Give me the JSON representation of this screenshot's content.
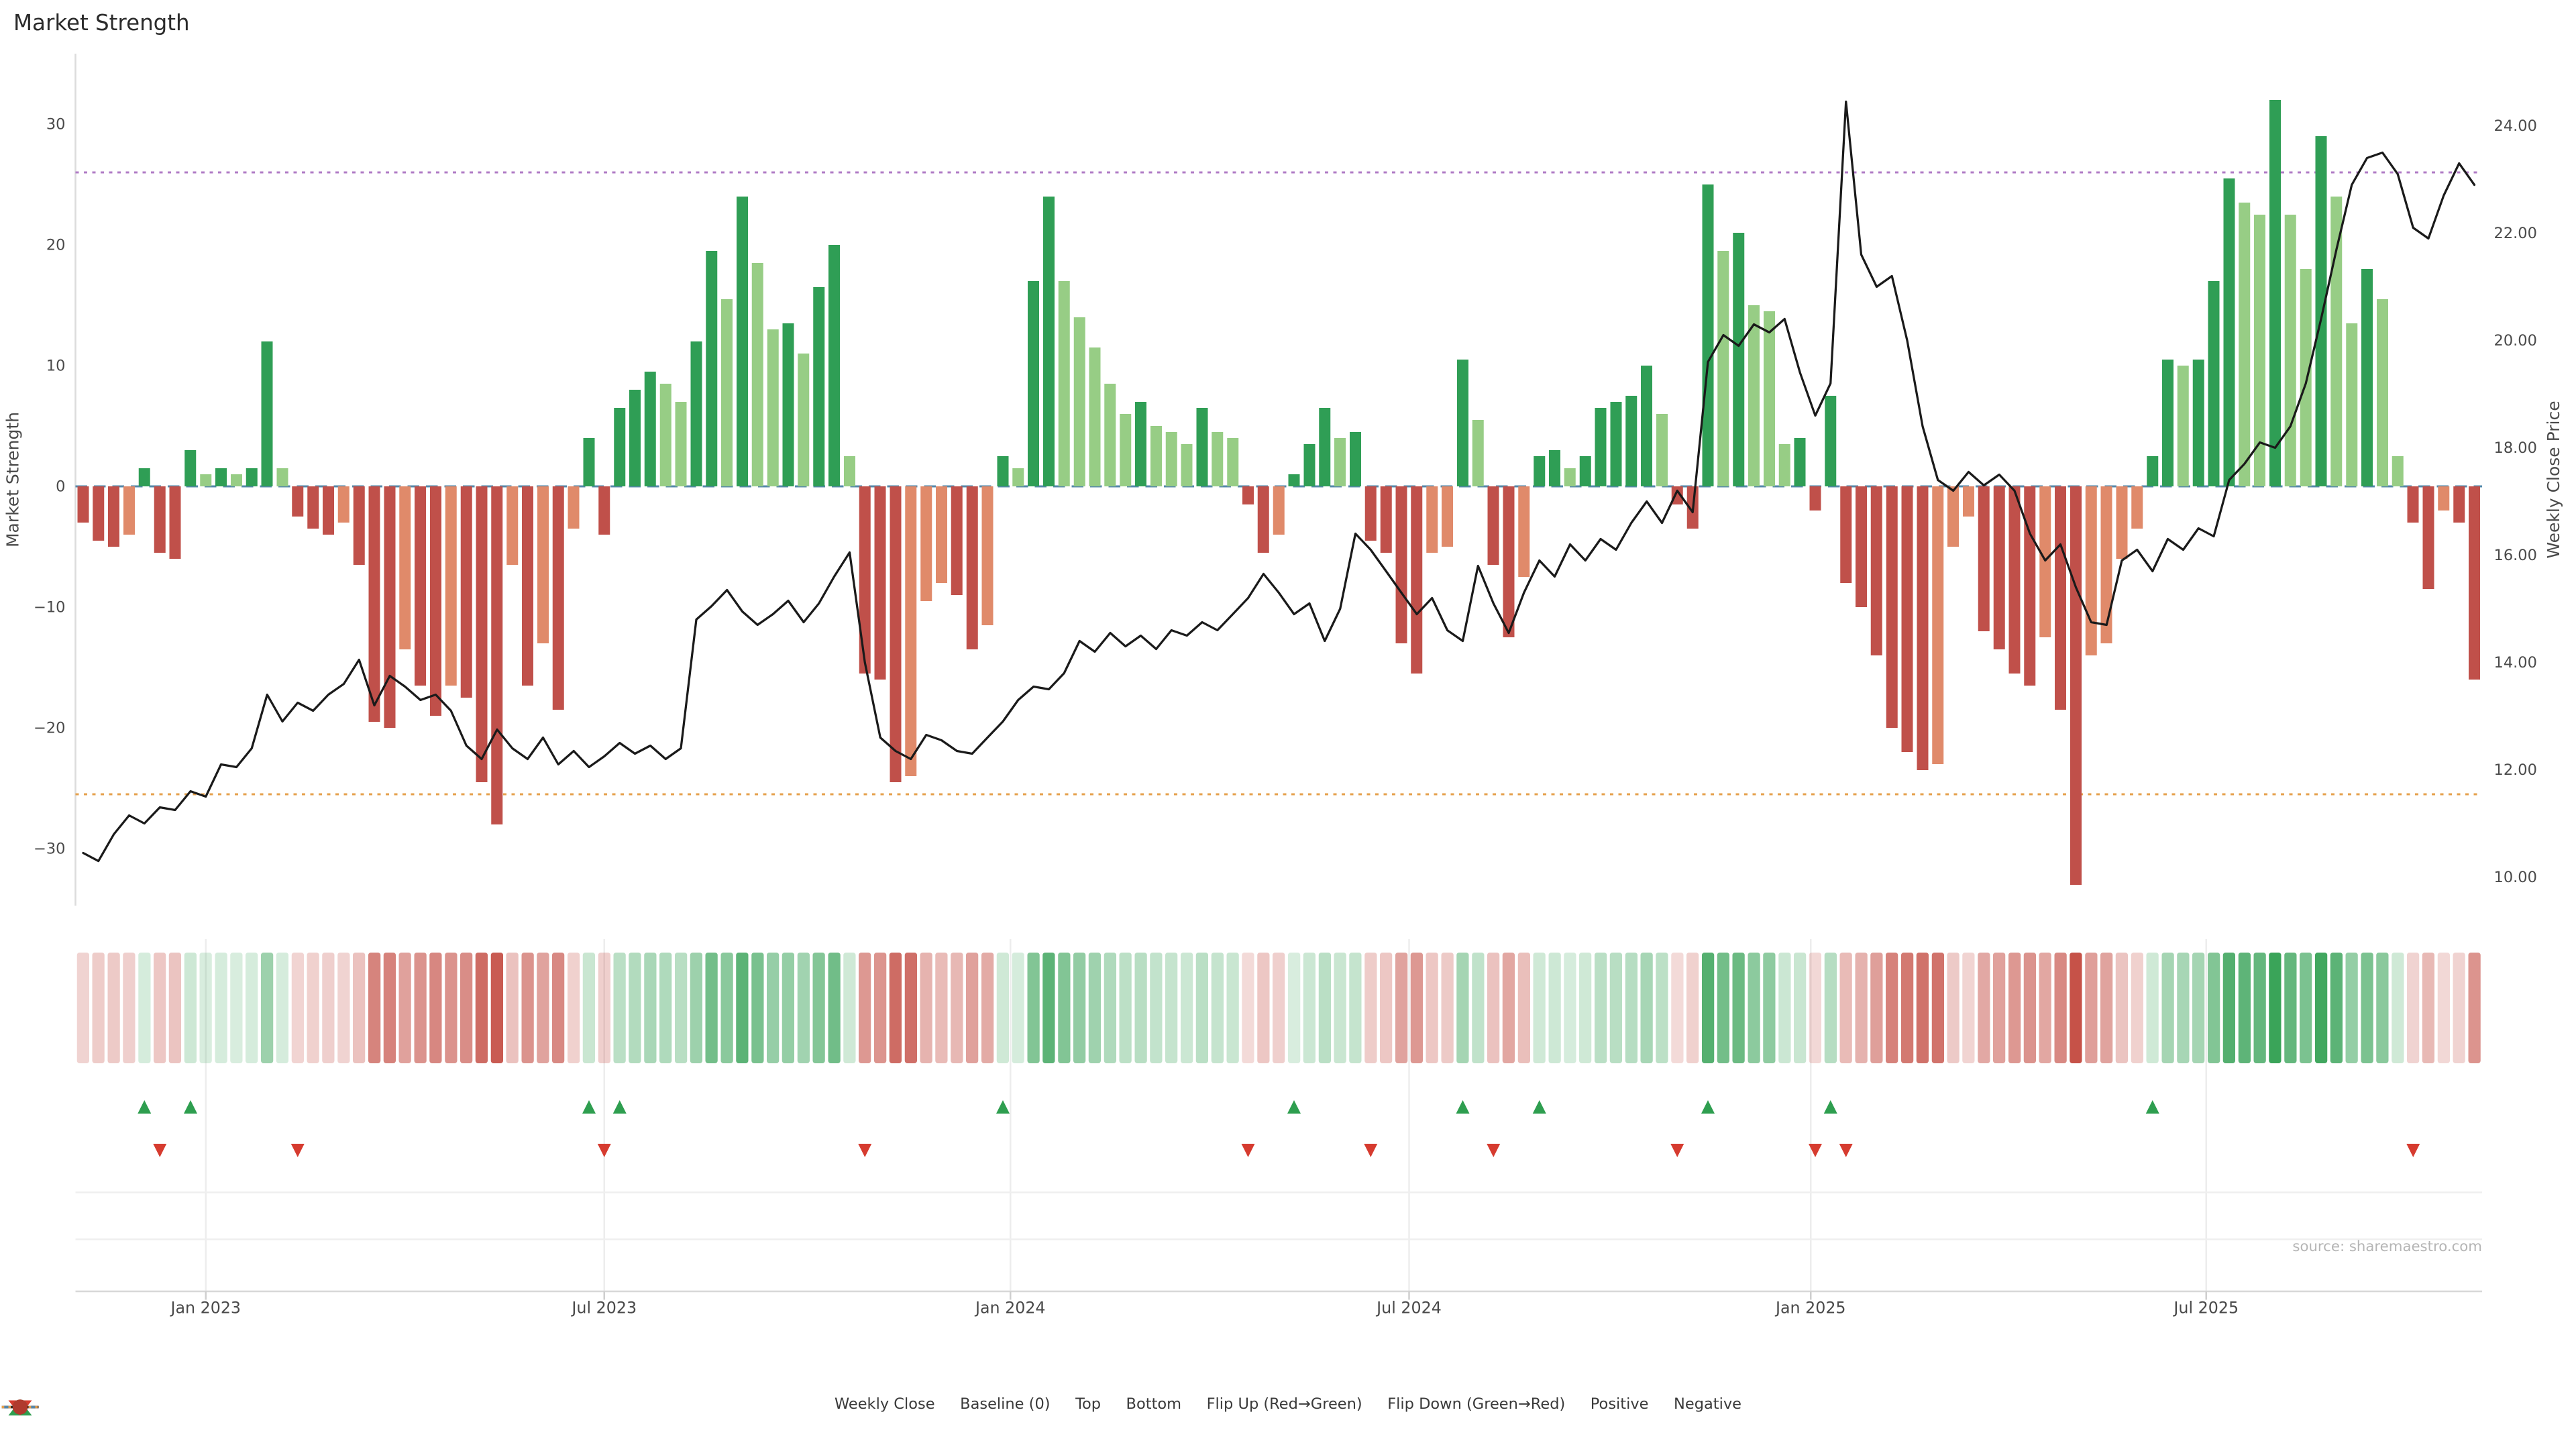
{
  "page": {
    "title": "Market Strength",
    "source": "source: sharemaestro.com"
  },
  "axes": {
    "left_label": "Market Strength",
    "right_label": "Weekly Close Price",
    "left_ticks": [
      {
        "label": "30",
        "value": 30
      },
      {
        "label": "20",
        "value": 20
      },
      {
        "label": "10",
        "value": 10
      },
      {
        "label": "0",
        "value": 0
      },
      {
        "label": "−10",
        "value": -10
      },
      {
        "label": "−20",
        "value": -20
      },
      {
        "label": "−30",
        "value": -30
      }
    ],
    "right_ticks": [
      {
        "label": "24.00",
        "value": 24
      },
      {
        "label": "22.00",
        "value": 22
      },
      {
        "label": "20.00",
        "value": 20
      },
      {
        "label": "18.00",
        "value": 18
      },
      {
        "label": "16.00",
        "value": 16
      },
      {
        "label": "14.00",
        "value": 14
      },
      {
        "label": "12.00",
        "value": 12
      },
      {
        "label": "10.00",
        "value": 10
      }
    ],
    "x_ticks": [
      {
        "label": "Jan 2023",
        "week": 8.5
      },
      {
        "label": "Jul 2023",
        "week": 34.5
      },
      {
        "label": "Jan 2024",
        "week": 61.0
      },
      {
        "label": "Jul 2024",
        "week": 87.0
      },
      {
        "label": "Jan 2025",
        "week": 113.2
      },
      {
        "label": "Jul 2025",
        "week": 139.0
      }
    ]
  },
  "chart_data": {
    "type": "bar+line",
    "x_unit": "weeks",
    "left_ylim": [
      -35,
      33
    ],
    "right_ylim": [
      9.7,
      24.6
    ],
    "thresholds": {
      "baseline": 0,
      "top": 26,
      "bottom": -25.5
    },
    "shade_rule": "bar is strong shade when |value| >= |previous value| or sign flips, soft shade otherwise; heatmap strip repeats bar sign with opacity proportional to |value|",
    "bar_series": {
      "name": "Market Strength",
      "axis": "left",
      "values": [
        -3,
        -4.5,
        -5,
        -4,
        1.5,
        -5.5,
        -6,
        3,
        1,
        1.5,
        1,
        1.5,
        12,
        1.5,
        -2.5,
        -3.5,
        -4,
        -3,
        -6.5,
        -19.5,
        -20,
        -13.5,
        -16.5,
        -19,
        -16.5,
        -17.5,
        -24.5,
        -28,
        -6.5,
        -16.5,
        -13,
        -18.5,
        -3.5,
        4,
        -4,
        6.5,
        8,
        9.5,
        8.5,
        7,
        12,
        19.5,
        15.5,
        24,
        18.5,
        13,
        13.5,
        11,
        16.5,
        20,
        2.5,
        -15.5,
        -16,
        -24.5,
        -24,
        -9.5,
        -8,
        -9,
        -13.5,
        -11.5,
        2.5,
        1.5,
        17,
        24,
        17,
        14,
        11.5,
        8.5,
        6,
        7,
        5,
        4.5,
        3.5,
        6.5,
        4.5,
        4,
        -1.5,
        -5.5,
        -4,
        1,
        3.5,
        6.5,
        4,
        4.5,
        -4.5,
        -5.5,
        -13,
        -15.5,
        -5.5,
        -5,
        10.5,
        5.5,
        -6.5,
        -12.5,
        -7.5,
        2.5,
        3,
        1.5,
        2.5,
        6.5,
        7,
        7.5,
        10,
        6,
        -1.5,
        -3.5,
        25,
        19.5,
        21,
        15,
        14.5,
        3.5,
        4,
        -2,
        7.5,
        -8,
        -10,
        -14,
        -20,
        -22,
        -23.5,
        -23,
        -5,
        -2.5,
        -12,
        -13.5,
        -15.5,
        -16.5,
        -12.5,
        -18.5,
        -33,
        -14,
        -13,
        -6,
        -3.5,
        2.5,
        10.5,
        10,
        10.5,
        17,
        25.5,
        23.5,
        22.5,
        32,
        22.5,
        18,
        29,
        24,
        13.5,
        18,
        15.5,
        2.5,
        -3,
        -8.5,
        -2,
        -3,
        -16
      ]
    },
    "line_series": {
      "name": "Weekly Close",
      "axis": "right",
      "values": [
        10.45,
        10.3,
        10.8,
        11.15,
        11.0,
        11.3,
        11.25,
        11.6,
        11.5,
        12.1,
        12.05,
        12.4,
        13.4,
        12.9,
        13.25,
        13.1,
        13.4,
        13.6,
        14.05,
        13.2,
        13.75,
        13.55,
        13.3,
        13.4,
        13.1,
        12.45,
        12.2,
        12.75,
        12.4,
        12.2,
        12.6,
        12.1,
        12.35,
        12.05,
        12.25,
        12.5,
        12.3,
        12.45,
        12.2,
        12.4,
        14.8,
        15.05,
        15.35,
        14.95,
        14.7,
        14.9,
        15.15,
        14.75,
        15.1,
        15.6,
        16.05,
        14.0,
        12.6,
        12.35,
        12.2,
        12.65,
        12.55,
        12.35,
        12.3,
        12.6,
        12.9,
        13.3,
        13.55,
        13.5,
        13.8,
        14.4,
        14.2,
        14.55,
        14.3,
        14.5,
        14.25,
        14.6,
        14.5,
        14.75,
        14.6,
        14.9,
        15.2,
        15.65,
        15.3,
        14.9,
        15.1,
        14.4,
        15.0,
        16.4,
        16.1,
        15.7,
        15.3,
        14.9,
        15.2,
        14.6,
        14.4,
        15.8,
        15.1,
        14.55,
        15.3,
        15.9,
        15.6,
        16.2,
        15.9,
        16.3,
        16.1,
        16.6,
        17.0,
        16.6,
        17.2,
        16.8,
        19.6,
        20.1,
        19.9,
        20.3,
        20.15,
        20.4,
        19.4,
        18.6,
        19.2,
        24.45,
        21.6,
        21.0,
        21.2,
        20.0,
        18.4,
        17.4,
        17.2,
        17.55,
        17.3,
        17.5,
        17.2,
        16.4,
        15.9,
        16.2,
        15.4,
        14.75,
        14.7,
        15.9,
        16.1,
        15.7,
        16.3,
        16.1,
        16.5,
        16.35,
        17.4,
        17.7,
        18.1,
        18.0,
        18.4,
        19.2,
        20.4,
        21.7,
        22.9,
        23.4,
        23.5,
        23.1,
        22.1,
        21.9,
        22.7,
        23.3,
        22.9
      ]
    },
    "markers_rule": "green up-triangle where bar flips red→green, red down-triangle where bar flips green→red"
  },
  "legend": {
    "items": [
      {
        "label": "Weekly Close",
        "swatch": "line",
        "color_key": "line"
      },
      {
        "label": "Baseline (0)",
        "swatch": "dash",
        "color_key": "baseline"
      },
      {
        "label": "Top",
        "swatch": "dot-line",
        "color_key": "top"
      },
      {
        "label": "Bottom",
        "swatch": "dot-line",
        "color_key": "bottom"
      },
      {
        "label": "Flip Up (Red→Green)",
        "swatch": "triangle-up",
        "color_key": "flip_up"
      },
      {
        "label": "Flip Down (Green→Red)",
        "swatch": "triangle-down",
        "color_key": "flip_down"
      },
      {
        "label": "Positive",
        "swatch": "dot",
        "color_key": "positive_dot"
      },
      {
        "label": "Negative",
        "swatch": "dot",
        "color_key": "negative_dot"
      }
    ]
  },
  "colors": {
    "bar_pos_strong": "#2f9e55",
    "bar_pos_soft": "#97cd85",
    "bar_neg_strong": "#c0504a",
    "bar_neg_soft": "#e08a6a",
    "heat_pos": "#2e9e4f",
    "heat_neg": "#c2473d",
    "line": "#1a1a1a",
    "baseline": "#5588aa",
    "top": "#b07cc6",
    "bottom": "#e5a04c",
    "flip_up": "#2e9e4f",
    "flip_down": "#d63b2f",
    "positive_dot": "#2e7d32",
    "negative_dot": "#b03a2e"
  }
}
